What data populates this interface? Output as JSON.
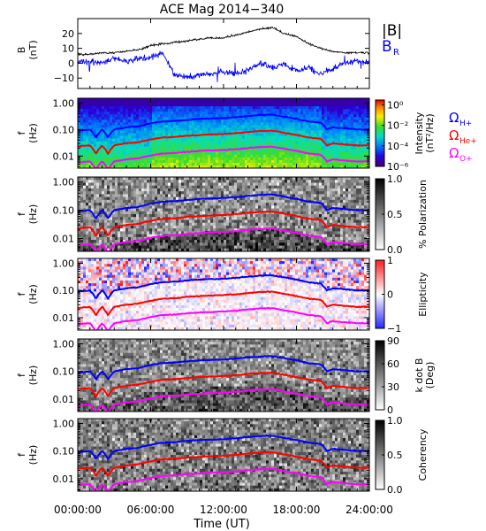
{
  "figure": {
    "title": "ACE Mag 2014−340",
    "xlabel": "Time (UT)",
    "xticks": [
      "00:00:00",
      "06:00:00",
      "12:00:00",
      "18:00:00",
      "24:00:00"
    ],
    "xrange_hours": [
      0,
      24
    ]
  },
  "colors": {
    "btotal": "#000000",
    "br": "#0000ff",
    "h_plus": "#0000ff",
    "he_plus": "#ff0000",
    "o_plus": "#ff00ff"
  },
  "chart_data": [
    {
      "type": "line",
      "panel": "field",
      "ylabel": "B",
      "yunits": "(nT)",
      "ylim": [
        -17,
        30
      ],
      "yticks": [
        "20",
        "10",
        "0",
        "−10"
      ],
      "ytick_values": [
        20,
        10,
        0,
        -10
      ],
      "legend": [
        "|B|",
        "B"
      ],
      "legend_sub": [
        "",
        "R"
      ],
      "series": [
        {
          "name": "|B|",
          "x": [
            0,
            1,
            2,
            3,
            4,
            5,
            6,
            7,
            8,
            9,
            10,
            11,
            12,
            13,
            14,
            15,
            16,
            17,
            18,
            19,
            20,
            21,
            22,
            23,
            24
          ],
          "y": [
            6,
            6,
            7,
            7,
            8,
            9,
            12,
            13,
            14,
            15,
            16,
            17,
            17,
            19,
            21,
            23,
            24,
            20,
            18,
            13,
            10,
            8,
            7,
            7,
            7
          ]
        },
        {
          "name": "B_R",
          "x": [
            0,
            1,
            2,
            3,
            4,
            5,
            6,
            7,
            8,
            9,
            10,
            11,
            12,
            13,
            14,
            15,
            16,
            17,
            18,
            19,
            20,
            21,
            22,
            23,
            24
          ],
          "y": [
            0,
            1,
            0,
            3,
            1,
            3,
            4,
            7,
            -8,
            -9,
            -8,
            -7,
            -6,
            -7,
            -5,
            0,
            -3,
            -1,
            -5,
            -3,
            -7,
            -4,
            0,
            1,
            1
          ]
        }
      ]
    },
    {
      "type": "heatmap",
      "panel": "intensity",
      "ylabel": "f",
      "yunits": "(Hz)",
      "yscale": "log",
      "ylim": [
        0.0035,
        1.5
      ],
      "yticks": [
        "1.00",
        "0.10",
        "0.01"
      ],
      "ytick_values": [
        1,
        0.1,
        0.01
      ],
      "colorbar_label": "Intensity",
      "colorbar_units": "(nT²/Hz)",
      "colorbar_scale": "log",
      "colorbar_range": [
        1e-06,
        3
      ],
      "colorbar_ticks": [
        "10⁰",
        "10⁻²",
        "10⁻⁴",
        "10⁻⁶"
      ],
      "colorbar_tick_values": [
        1,
        0.01,
        0.0001,
        1e-06
      ],
      "colormap": "rainbow",
      "legend": [
        "Ω",
        "Ω",
        "Ω"
      ],
      "legend_sub": [
        "H+",
        "He+",
        "O+"
      ]
    },
    {
      "type": "heatmap",
      "panel": "polarization",
      "ylabel": "f",
      "yunits": "(Hz)",
      "yscale": "log",
      "ylim": [
        0.0035,
        1.5
      ],
      "yticks": [
        "1.00",
        "0.10",
        "0.01"
      ],
      "ytick_values": [
        1,
        0.1,
        0.01
      ],
      "colorbar_label": "% Polarization",
      "colorbar_range": [
        0,
        1
      ],
      "colorbar_ticks": [
        "1.0",
        "0.5",
        "0.0"
      ],
      "colorbar_tick_values": [
        1,
        0.5,
        0
      ],
      "colormap": "gray"
    },
    {
      "type": "heatmap",
      "panel": "ellipticity",
      "ylabel": "f",
      "yunits": "(Hz)",
      "yscale": "log",
      "ylim": [
        0.0035,
        1.5
      ],
      "yticks": [
        "1.00",
        "0.10",
        "0.01"
      ],
      "ytick_values": [
        1,
        0.1,
        0.01
      ],
      "colorbar_label": "Ellipticity",
      "colorbar_range": [
        -1,
        1
      ],
      "colorbar_ticks": [
        "1",
        "0",
        "−1"
      ],
      "colorbar_tick_values": [
        1,
        0,
        -1
      ],
      "colormap": "blue-white-red"
    },
    {
      "type": "heatmap",
      "panel": "kdotb",
      "ylabel": "f",
      "yunits": "(Hz)",
      "yscale": "log",
      "ylim": [
        0.0035,
        1.5
      ],
      "yticks": [
        "1.00",
        "0.10",
        "0.01"
      ],
      "ytick_values": [
        1,
        0.1,
        0.01
      ],
      "colorbar_label": "k dot B",
      "colorbar_units": "(Deg)",
      "colorbar_range": [
        0,
        90
      ],
      "colorbar_ticks": [
        "90",
        "60",
        "30",
        "0"
      ],
      "colorbar_tick_values": [
        90,
        60,
        30,
        0
      ],
      "colormap": "gray"
    },
    {
      "type": "heatmap",
      "panel": "coherency",
      "ylabel": "f",
      "yunits": "(Hz)",
      "yscale": "log",
      "ylim": [
        0.0035,
        1.5
      ],
      "yticks": [
        "1.00",
        "0.10",
        "0.01"
      ],
      "ytick_values": [
        1,
        0.1,
        0.01
      ],
      "colorbar_label": "Coherency",
      "colorbar_range": [
        0,
        1
      ],
      "colorbar_ticks": [
        "1.0",
        "0.5",
        "0.0"
      ],
      "colorbar_tick_values": [
        1,
        0.5,
        0
      ],
      "colormap": "gray"
    }
  ],
  "gyrofrequency_lines": {
    "x": [
      0,
      1,
      1.5,
      2,
      2.5,
      3,
      4,
      5,
      6,
      7,
      8,
      9,
      10,
      11,
      12,
      13,
      14,
      15,
      16,
      17,
      18,
      19,
      20,
      20.5,
      21,
      22,
      23,
      24
    ],
    "h_plus": [
      0.09,
      0.1,
      0.05,
      0.1,
      0.05,
      0.1,
      0.12,
      0.13,
      0.17,
      0.2,
      0.21,
      0.23,
      0.25,
      0.26,
      0.27,
      0.29,
      0.32,
      0.35,
      0.36,
      0.3,
      0.25,
      0.2,
      0.18,
      0.1,
      0.12,
      0.11,
      0.1,
      0.1
    ],
    "he_plus": [
      0.023,
      0.025,
      0.012,
      0.025,
      0.012,
      0.025,
      0.03,
      0.033,
      0.042,
      0.05,
      0.052,
      0.058,
      0.062,
      0.065,
      0.068,
      0.072,
      0.08,
      0.088,
      0.09,
      0.075,
      0.062,
      0.05,
      0.045,
      0.025,
      0.03,
      0.027,
      0.025,
      0.025
    ]
  }
}
